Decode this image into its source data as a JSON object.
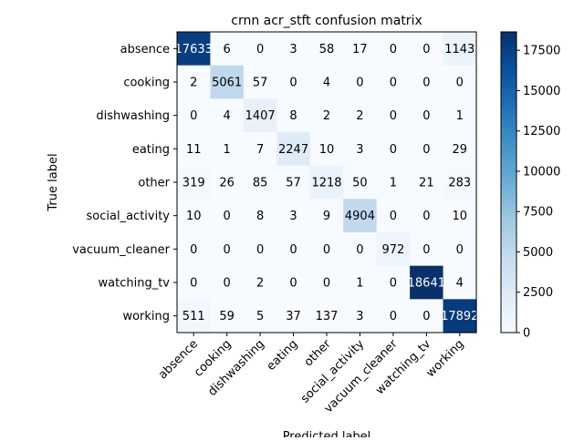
{
  "chart_data": {
    "type": "heatmap",
    "title": "crnn acr_stft confusion matrix",
    "xlabel": "Predicted label",
    "ylabel": "True label",
    "row_labels": [
      "absence",
      "cooking",
      "dishwashing",
      "eating",
      "other",
      "social_activity",
      "vacuum_cleaner",
      "watching_tv",
      "working"
    ],
    "col_labels": [
      "absence",
      "cooking",
      "dishwashing",
      "eating",
      "other",
      "social_activity",
      "vacuum_cleaner",
      "watching_tv",
      "working"
    ],
    "values": [
      [
        17633,
        6,
        0,
        3,
        58,
        17,
        0,
        0,
        1143
      ],
      [
        2,
        5061,
        57,
        0,
        4,
        0,
        0,
        0,
        0
      ],
      [
        0,
        4,
        1407,
        8,
        2,
        2,
        0,
        0,
        1
      ],
      [
        11,
        1,
        7,
        2247,
        10,
        3,
        0,
        0,
        29
      ],
      [
        319,
        26,
        85,
        57,
        1218,
        50,
        1,
        21,
        283
      ],
      [
        10,
        0,
        8,
        3,
        9,
        4904,
        0,
        0,
        10
      ],
      [
        0,
        0,
        0,
        0,
        0,
        0,
        972,
        0,
        0
      ],
      [
        0,
        0,
        2,
        0,
        0,
        1,
        0,
        18641,
        4
      ],
      [
        511,
        59,
        5,
        37,
        137,
        3,
        0,
        0,
        17892
      ]
    ],
    "colormap": "Blues",
    "vmin": 0,
    "vmax": 18641,
    "colorbar_ticks": [
      0,
      2500,
      5000,
      7500,
      10000,
      12500,
      15000,
      17500
    ]
  }
}
